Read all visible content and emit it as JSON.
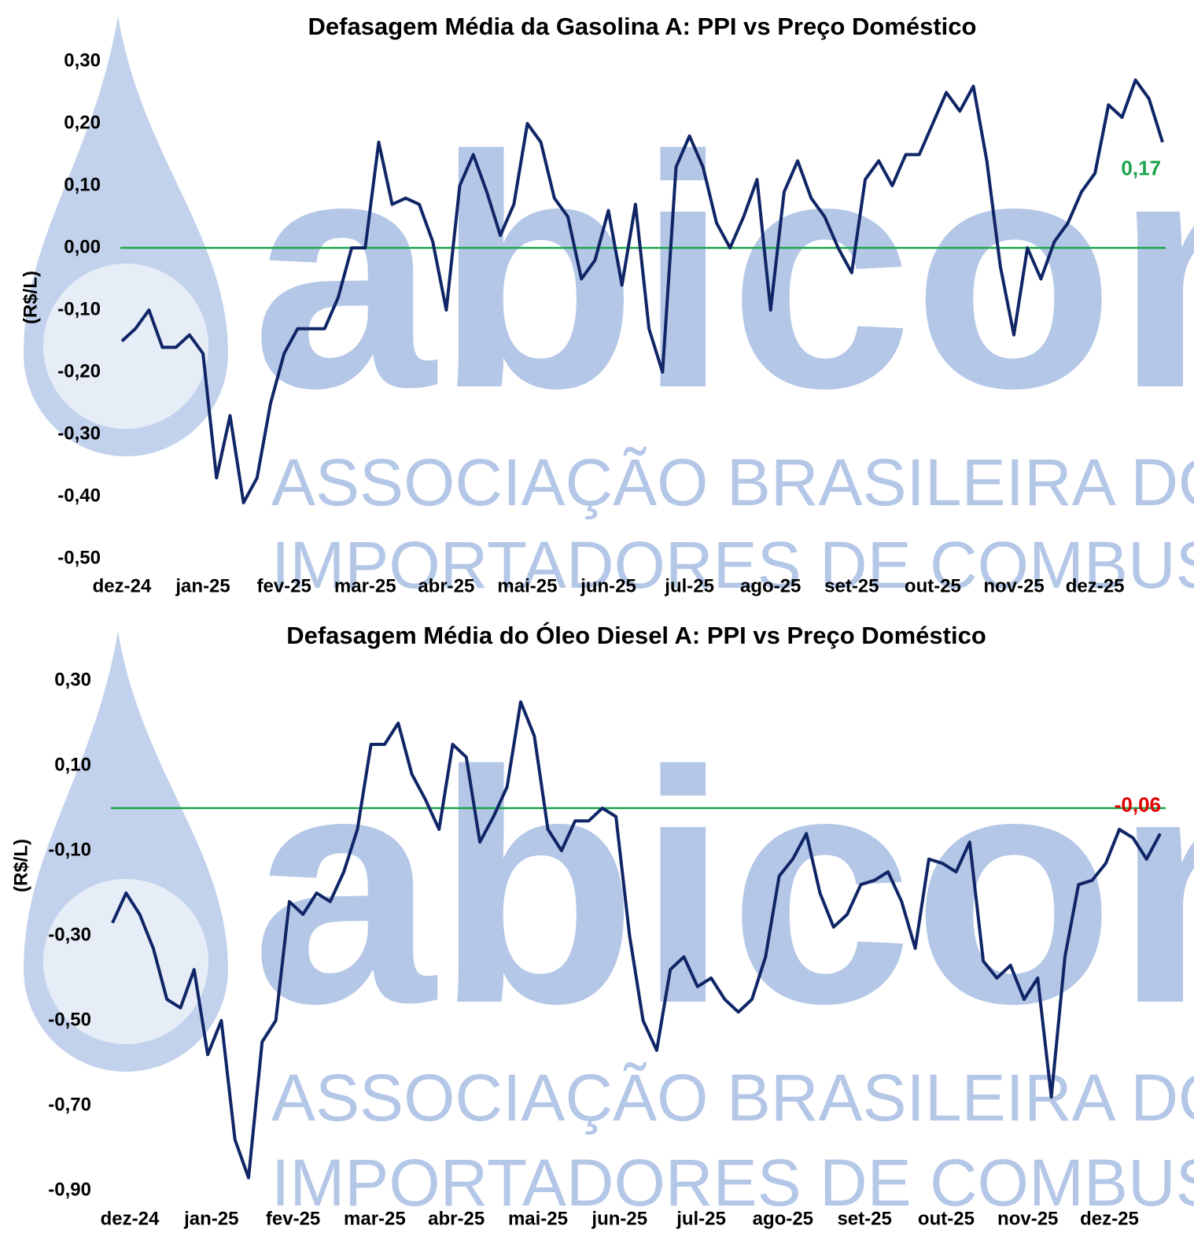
{
  "watermark": {
    "logo": "abicom",
    "lines": [
      "ASSOCIAÇÃO BRASILEIRA DOS",
      "IMPORTADORES DE COMBUSTÍVEIS"
    ]
  },
  "chart_data": [
    {
      "type": "line",
      "title": "Defasagem Média da Gasolina A: PPI vs Preço Doméstico",
      "y_label": "(R$/L)",
      "color": "#0f2566",
      "categories": [
        "dez-24",
        null,
        null,
        null,
        null,
        null,
        "jan-25",
        null,
        null,
        null,
        null,
        null,
        "fev-25",
        null,
        null,
        null,
        null,
        null,
        "mar-25",
        null,
        null,
        null,
        null,
        null,
        "abr-25",
        null,
        null,
        null,
        null,
        null,
        "mai-25",
        null,
        null,
        null,
        null,
        null,
        "jun-25",
        null,
        null,
        null,
        null,
        null,
        "jul-25",
        null,
        null,
        null,
        null,
        null,
        "ago-25",
        null,
        null,
        null,
        null,
        null,
        "set-25",
        null,
        null,
        null,
        null,
        null,
        "out-25",
        null,
        null,
        null,
        null,
        null,
        "nov-25",
        null,
        null,
        null,
        null,
        null,
        "dez-25",
        null,
        null,
        null,
        null,
        null
      ],
      "values": [
        -0.15,
        -0.13,
        -0.1,
        -0.16,
        -0.16,
        -0.14,
        -0.17,
        -0.37,
        -0.27,
        -0.41,
        -0.37,
        -0.25,
        -0.17,
        -0.13,
        -0.13,
        -0.13,
        -0.08,
        0.0,
        0.0,
        0.17,
        0.07,
        0.08,
        0.07,
        0.01,
        -0.1,
        0.1,
        0.15,
        0.09,
        0.02,
        0.07,
        0.2,
        0.17,
        0.08,
        0.05,
        -0.05,
        -0.02,
        0.06,
        -0.06,
        0.07,
        -0.13,
        -0.2,
        0.13,
        0.18,
        0.13,
        0.04,
        0.0,
        0.05,
        0.11,
        -0.1,
        0.09,
        0.14,
        0.08,
        0.05,
        0.0,
        -0.04,
        0.11,
        0.14,
        0.1,
        0.15,
        0.15,
        0.2,
        0.25,
        0.22,
        0.26,
        0.14,
        -0.03,
        -0.14,
        0.0,
        -0.05,
        0.01,
        0.04,
        0.09,
        0.12,
        0.23,
        0.21,
        0.27,
        0.24,
        0.17
      ],
      "ylim": [
        -0.5,
        0.3
      ],
      "yticks": [
        {
          "value": 0.3,
          "label": "0,30"
        },
        {
          "value": 0.2,
          "label": "0,20"
        },
        {
          "value": 0.1,
          "label": "0,10"
        },
        {
          "value": 0,
          "label": "0,00"
        },
        {
          "value": -0.1,
          "label": "-0,10"
        },
        {
          "value": -0.2,
          "label": "-0,20"
        },
        {
          "value": -0.3,
          "label": "-0,30"
        },
        {
          "value": -0.4,
          "label": "-0,40"
        },
        {
          "value": -0.5,
          "label": "-0,50"
        }
      ],
      "reference_line": {
        "value": 0,
        "color": "#1aa34a"
      },
      "last_value_label": {
        "value": 0.17,
        "label": "0,17",
        "color": "#1aa34a"
      }
    },
    {
      "type": "line",
      "title": "Defasagem Média do Óleo Diesel A: PPI vs Preço Doméstico",
      "y_label": "(R$/L)",
      "color": "#0f2566",
      "categories": [
        "dez-24",
        null,
        null,
        null,
        null,
        null,
        "jan-25",
        null,
        null,
        null,
        null,
        null,
        "fev-25",
        null,
        null,
        null,
        null,
        null,
        "mar-25",
        null,
        null,
        null,
        null,
        null,
        "abr-25",
        null,
        null,
        null,
        null,
        null,
        "mai-25",
        null,
        null,
        null,
        null,
        null,
        "jun-25",
        null,
        null,
        null,
        null,
        null,
        "jul-25",
        null,
        null,
        null,
        null,
        null,
        "ago-25",
        null,
        null,
        null,
        null,
        null,
        "set-25",
        null,
        null,
        null,
        null,
        null,
        "out-25",
        null,
        null,
        null,
        null,
        null,
        "nov-25",
        null,
        null,
        null,
        null,
        null,
        "dez-25",
        null,
        null,
        null,
        null,
        null
      ],
      "values": [
        -0.27,
        -0.2,
        -0.25,
        -0.33,
        -0.45,
        -0.47,
        -0.38,
        -0.58,
        -0.5,
        -0.78,
        -0.87,
        -0.55,
        -0.5,
        -0.22,
        -0.25,
        -0.2,
        -0.22,
        -0.15,
        -0.05,
        0.15,
        0.15,
        0.2,
        0.08,
        0.02,
        -0.05,
        0.15,
        0.12,
        -0.08,
        -0.02,
        0.05,
        0.25,
        0.17,
        -0.05,
        -0.1,
        -0.03,
        -0.03,
        0.0,
        -0.02,
        -0.3,
        -0.5,
        -0.57,
        -0.38,
        -0.35,
        -0.42,
        -0.4,
        -0.45,
        -0.48,
        -0.45,
        -0.35,
        -0.16,
        -0.12,
        -0.06,
        -0.2,
        -0.28,
        -0.25,
        -0.18,
        -0.17,
        -0.15,
        -0.22,
        -0.33,
        -0.12,
        -0.13,
        -0.15,
        -0.08,
        -0.36,
        -0.4,
        -0.37,
        -0.45,
        -0.4,
        -0.68,
        -0.35,
        -0.18,
        -0.17,
        -0.13,
        -0.05,
        -0.07,
        -0.12,
        -0.06
      ],
      "ylim": [
        -0.9,
        0.3
      ],
      "yticks": [
        {
          "value": 0.3,
          "label": "0,30"
        },
        {
          "value": 0.1,
          "label": "0,10"
        },
        {
          "value": -0.1,
          "label": "-0,10"
        },
        {
          "value": -0.3,
          "label": "-0,30"
        },
        {
          "value": -0.5,
          "label": "-0,50"
        },
        {
          "value": -0.7,
          "label": "-0,70"
        },
        {
          "value": -0.9,
          "label": "-0,90"
        }
      ],
      "reference_line": {
        "value": 0,
        "color": "#1aa34a"
      },
      "last_value_label": {
        "value": -0.06,
        "label": "-0,06",
        "color": "#e00000"
      }
    }
  ]
}
